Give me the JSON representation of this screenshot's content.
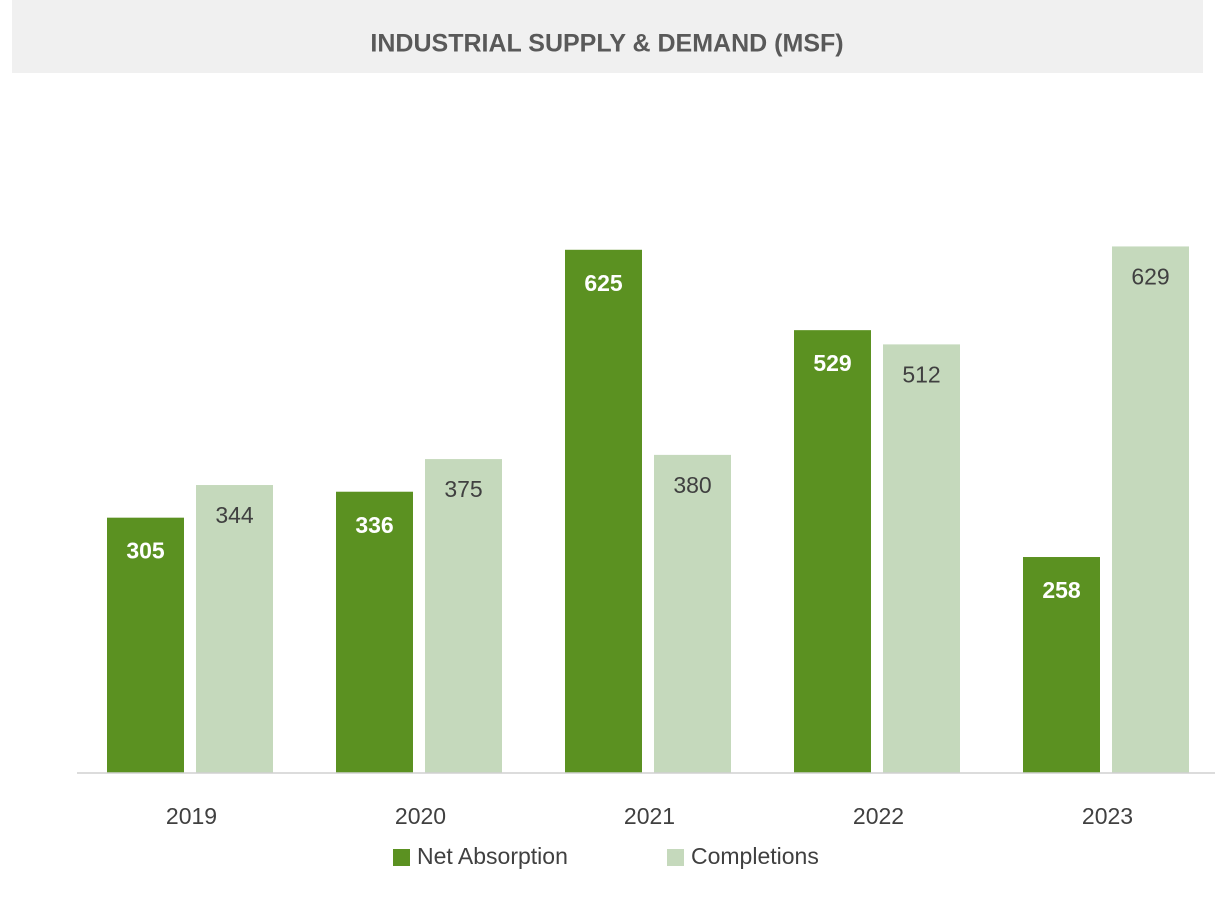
{
  "chart_data": {
    "type": "bar",
    "title": "INDUSTRIAL SUPPLY & DEMAND (MSF)",
    "categories": [
      "2019",
      "2020",
      "2021",
      "2022",
      "2023"
    ],
    "series": [
      {
        "name": "Net Absorption",
        "color": "#5b9121",
        "values": [
          305,
          336,
          625,
          529,
          258
        ]
      },
      {
        "name": "Completions",
        "color": "#c5d9bc",
        "values": [
          344,
          375,
          380,
          512,
          629
        ]
      }
    ],
    "ylim": [
      0,
      700
    ],
    "legend": "bottom"
  }
}
